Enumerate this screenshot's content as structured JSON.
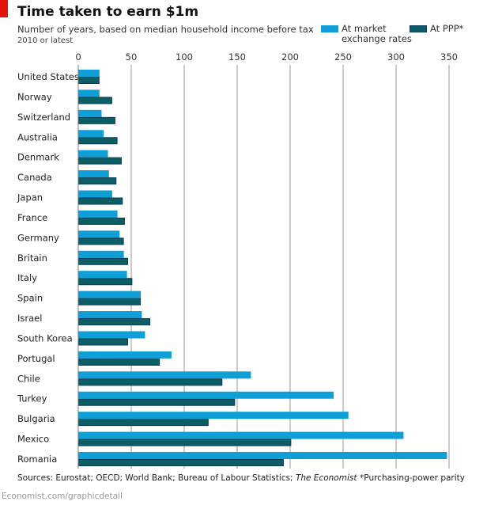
{
  "chart_data": {
    "type": "bar",
    "orientation": "horizontal",
    "title": "Time taken to earn $1m",
    "subtitle": "Number of years, based on median household income before tax",
    "note": "2010 or latest",
    "xlim": [
      0,
      350
    ],
    "xticks": [
      0,
      50,
      100,
      150,
      200,
      250,
      300,
      350
    ],
    "grid": true,
    "legend_position": "top-right",
    "categories": [
      "United States",
      "Norway",
      "Switzerland",
      "Australia",
      "Denmark",
      "Canada",
      "Japan",
      "France",
      "Germany",
      "Britain",
      "Italy",
      "Spain",
      "Israel",
      "South Korea",
      "Portugal",
      "Chile",
      "Turkey",
      "Bulgaria",
      "Mexico",
      "Romania"
    ],
    "series": [
      {
        "name": "At market exchange rates",
        "name_line1": "At market",
        "name_line2": "exchange rates",
        "color": "#0e9fd6",
        "values": [
          20,
          20,
          22,
          24,
          28,
          29,
          32,
          37,
          39,
          43,
          46,
          59,
          60,
          63,
          88,
          163,
          241,
          255,
          307,
          348
        ]
      },
      {
        "name": "At PPP*",
        "color": "#0b5e63",
        "values": [
          20,
          32,
          35,
          37,
          41,
          36,
          42,
          44,
          43,
          47,
          51,
          59,
          68,
          47,
          77,
          136,
          148,
          123,
          201,
          194
        ]
      }
    ],
    "source_prefix": "Sources: Eurostat; OECD; World Bank; Bureau of Labour Statistics; ",
    "source_italic": "The Economist",
    "footnote": "*Purchasing-power parity",
    "credit": "Economist.com/graphicdetail"
  }
}
